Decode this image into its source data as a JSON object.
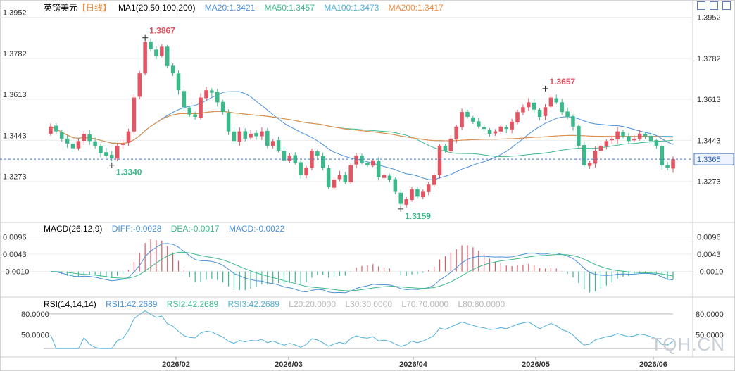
{
  "header": {
    "symbol": "英镑美元",
    "period": "【日线】",
    "ma_label": "MA1(20,50,100,200)",
    "ma": [
      {
        "name": "MA20",
        "value": "1.3421",
        "color": "#4a90d9"
      },
      {
        "name": "MA50",
        "value": "1.3457",
        "color": "#3cb98a"
      },
      {
        "name": "MA100",
        "value": "1.3473",
        "color": "#4fb0d8"
      },
      {
        "name": "MA200",
        "value": "1.3417",
        "color": "#f08c3c"
      }
    ]
  },
  "macd": {
    "label": "MACD(26,12,9)",
    "diff": "DIFF:-0.0028",
    "dea": "DEA:-0.0017",
    "macd": "MACD:-0.0022"
  },
  "rsi": {
    "label": "RSI(14,14,14)",
    "rsi1": "RSI1:42.2689",
    "rsi2": "RSI2:42.2689",
    "rsi3": "RSI3:42.2689",
    "levels": [
      "L20:20.0000",
      "L30:30.0000",
      "L70:70.0000",
      "L80:80.0000"
    ]
  },
  "watermark": "TQH.CN",
  "colors": {
    "up": "#e25563",
    "down": "#3cb98a",
    "grid": "#eeeeee",
    "axis": "#333333"
  },
  "chart_data": {
    "type": "candlestick",
    "price_axis_ticks": [
      1.3952,
      1.3782,
      1.3613,
      1.3443,
      1.3273
    ],
    "price_range": [
      1.3115,
      1.4
    ],
    "last_price": "1.3365",
    "annotations": [
      {
        "label": "1.3867",
        "value": 1.3867
      },
      {
        "label": "1.3657",
        "value": 1.3657
      },
      {
        "label": "1.3340",
        "value": 1.334
      },
      {
        "label": "1.3159",
        "value": 1.3159
      }
    ],
    "x_ticks": [
      "2026/02",
      "2026/03",
      "2026/04",
      "2026/05",
      "2026/06"
    ],
    "closes": [
      1.35,
      1.348,
      1.345,
      1.343,
      1.341,
      1.344,
      1.347,
      1.344,
      1.342,
      1.339,
      1.338,
      1.337,
      1.342,
      1.343,
      1.348,
      1.362,
      1.372,
      1.385,
      1.382,
      1.379,
      1.383,
      1.375,
      1.372,
      1.365,
      1.358,
      1.355,
      1.354,
      1.362,
      1.365,
      1.364,
      1.36,
      1.356,
      1.348,
      1.344,
      1.348,
      1.345,
      1.347,
      1.346,
      1.348,
      1.342,
      1.344,
      1.34,
      1.336,
      1.338,
      1.335,
      1.33,
      1.333,
      1.34,
      1.338,
      1.333,
      1.325,
      1.328,
      1.33,
      1.327,
      1.334,
      1.338,
      1.335,
      1.334,
      1.336,
      1.329,
      1.33,
      1.328,
      1.323,
      1.318,
      1.32,
      1.324,
      1.321,
      1.323,
      1.326,
      1.33,
      1.342,
      1.34,
      1.345,
      1.35,
      1.356,
      1.354,
      1.352,
      1.35,
      1.349,
      1.347,
      1.348,
      1.35,
      1.349,
      1.352,
      1.356,
      1.358,
      1.36,
      1.357,
      1.354,
      1.358,
      1.362,
      1.36,
      1.356,
      1.354,
      1.35,
      1.342,
      1.334,
      1.335,
      1.34,
      1.342,
      1.344,
      1.345,
      1.348,
      1.346,
      1.344,
      1.345,
      1.347,
      1.346,
      1.344,
      1.342,
      1.334,
      1.333,
      1.3365
    ],
    "macd_axis_ticks": [
      0.0096,
      0.0043,
      -0.001
    ],
    "macd_range": [
      -0.008,
      0.011
    ],
    "rsi_axis_ticks": [
      80.0,
      50.0
    ],
    "rsi_range": [
      20,
      90
    ],
    "rsi_levels": [
      30,
      80
    ]
  }
}
